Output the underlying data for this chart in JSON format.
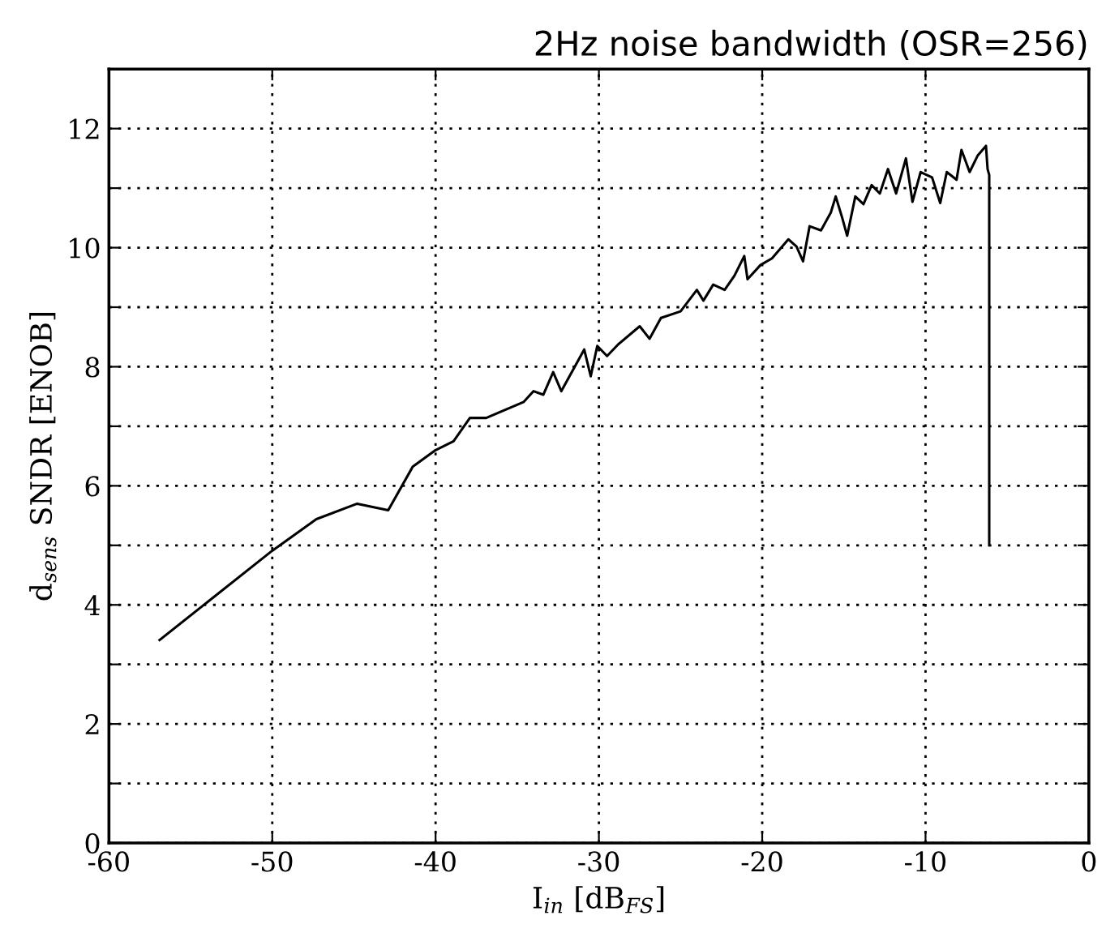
{
  "chart_data": {
    "type": "line",
    "title": "2Hz noise bandwidth (OSR=256)",
    "xlabel": "I$_{in}$ [dB$_{FS}$]",
    "ylabel": "d$_{sens}$ SNDR [ENOB]",
    "xlim": [
      -60,
      0
    ],
    "xticks": [
      -60,
      -50,
      -40,
      -30,
      -20,
      -10,
      0
    ],
    "ylim": [
      0,
      13
    ],
    "yticks": [
      0,
      {
        "value": 1,
        "label": null
      },
      2,
      {
        "value": 3,
        "label": null
      },
      4,
      {
        "value": 5,
        "label": null
      },
      6,
      {
        "value": 7,
        "label": null
      },
      8,
      {
        "value": 9,
        "label": null
      },
      10,
      {
        "value": 11,
        "label": null
      },
      12
    ],
    "grid": true,
    "line_style": "solid",
    "marker": "none",
    "series": [
      {
        "color": "#000000",
        "x": [
          -56.9,
          -50.0,
          -47.3,
          -44.8,
          -42.9,
          -41.4,
          -40.0,
          -38.9,
          -37.9,
          -36.9,
          -34.6,
          -34.0,
          -33.4,
          -32.8,
          -32.3,
          -30.9,
          -30.5,
          -30.1,
          -29.5,
          -28.8,
          -27.5,
          -26.9,
          -26.2,
          -25.0,
          -24.0,
          -23.6,
          -23.0,
          -22.3,
          -21.7,
          -21.1,
          -20.9,
          -20.1,
          -19.4,
          -18.4,
          -17.9,
          -17.5,
          -17.1,
          -16.4,
          -15.8,
          -15.5,
          -15.1,
          -14.8,
          -14.3,
          -13.8,
          -13.3,
          -12.8,
          -12.3,
          -11.8,
          -11.2,
          -10.8,
          -10.3,
          -9.6,
          -9.1,
          -8.7,
          -8.1,
          -7.8,
          -7.3,
          -6.8,
          -6.3,
          -6.2,
          -6.1,
          -6.1
        ],
        "values": [
          3.41,
          4.91,
          5.44,
          5.7,
          5.59,
          6.32,
          6.6,
          6.75,
          7.14,
          7.14,
          7.41,
          7.59,
          7.53,
          7.91,
          7.59,
          8.29,
          7.84,
          8.35,
          8.18,
          8.38,
          8.68,
          8.47,
          8.82,
          8.93,
          9.29,
          9.11,
          9.38,
          9.29,
          9.53,
          9.86,
          9.47,
          9.71,
          9.82,
          10.14,
          10.02,
          9.77,
          10.36,
          10.29,
          10.59,
          10.86,
          10.5,
          10.2,
          10.86,
          10.73,
          11.05,
          10.91,
          11.32,
          10.91,
          11.5,
          10.77,
          11.27,
          11.18,
          10.75,
          11.27,
          11.14,
          11.64,
          11.27,
          11.55,
          11.71,
          11.32,
          11.22,
          5.0
        ]
      }
    ]
  }
}
